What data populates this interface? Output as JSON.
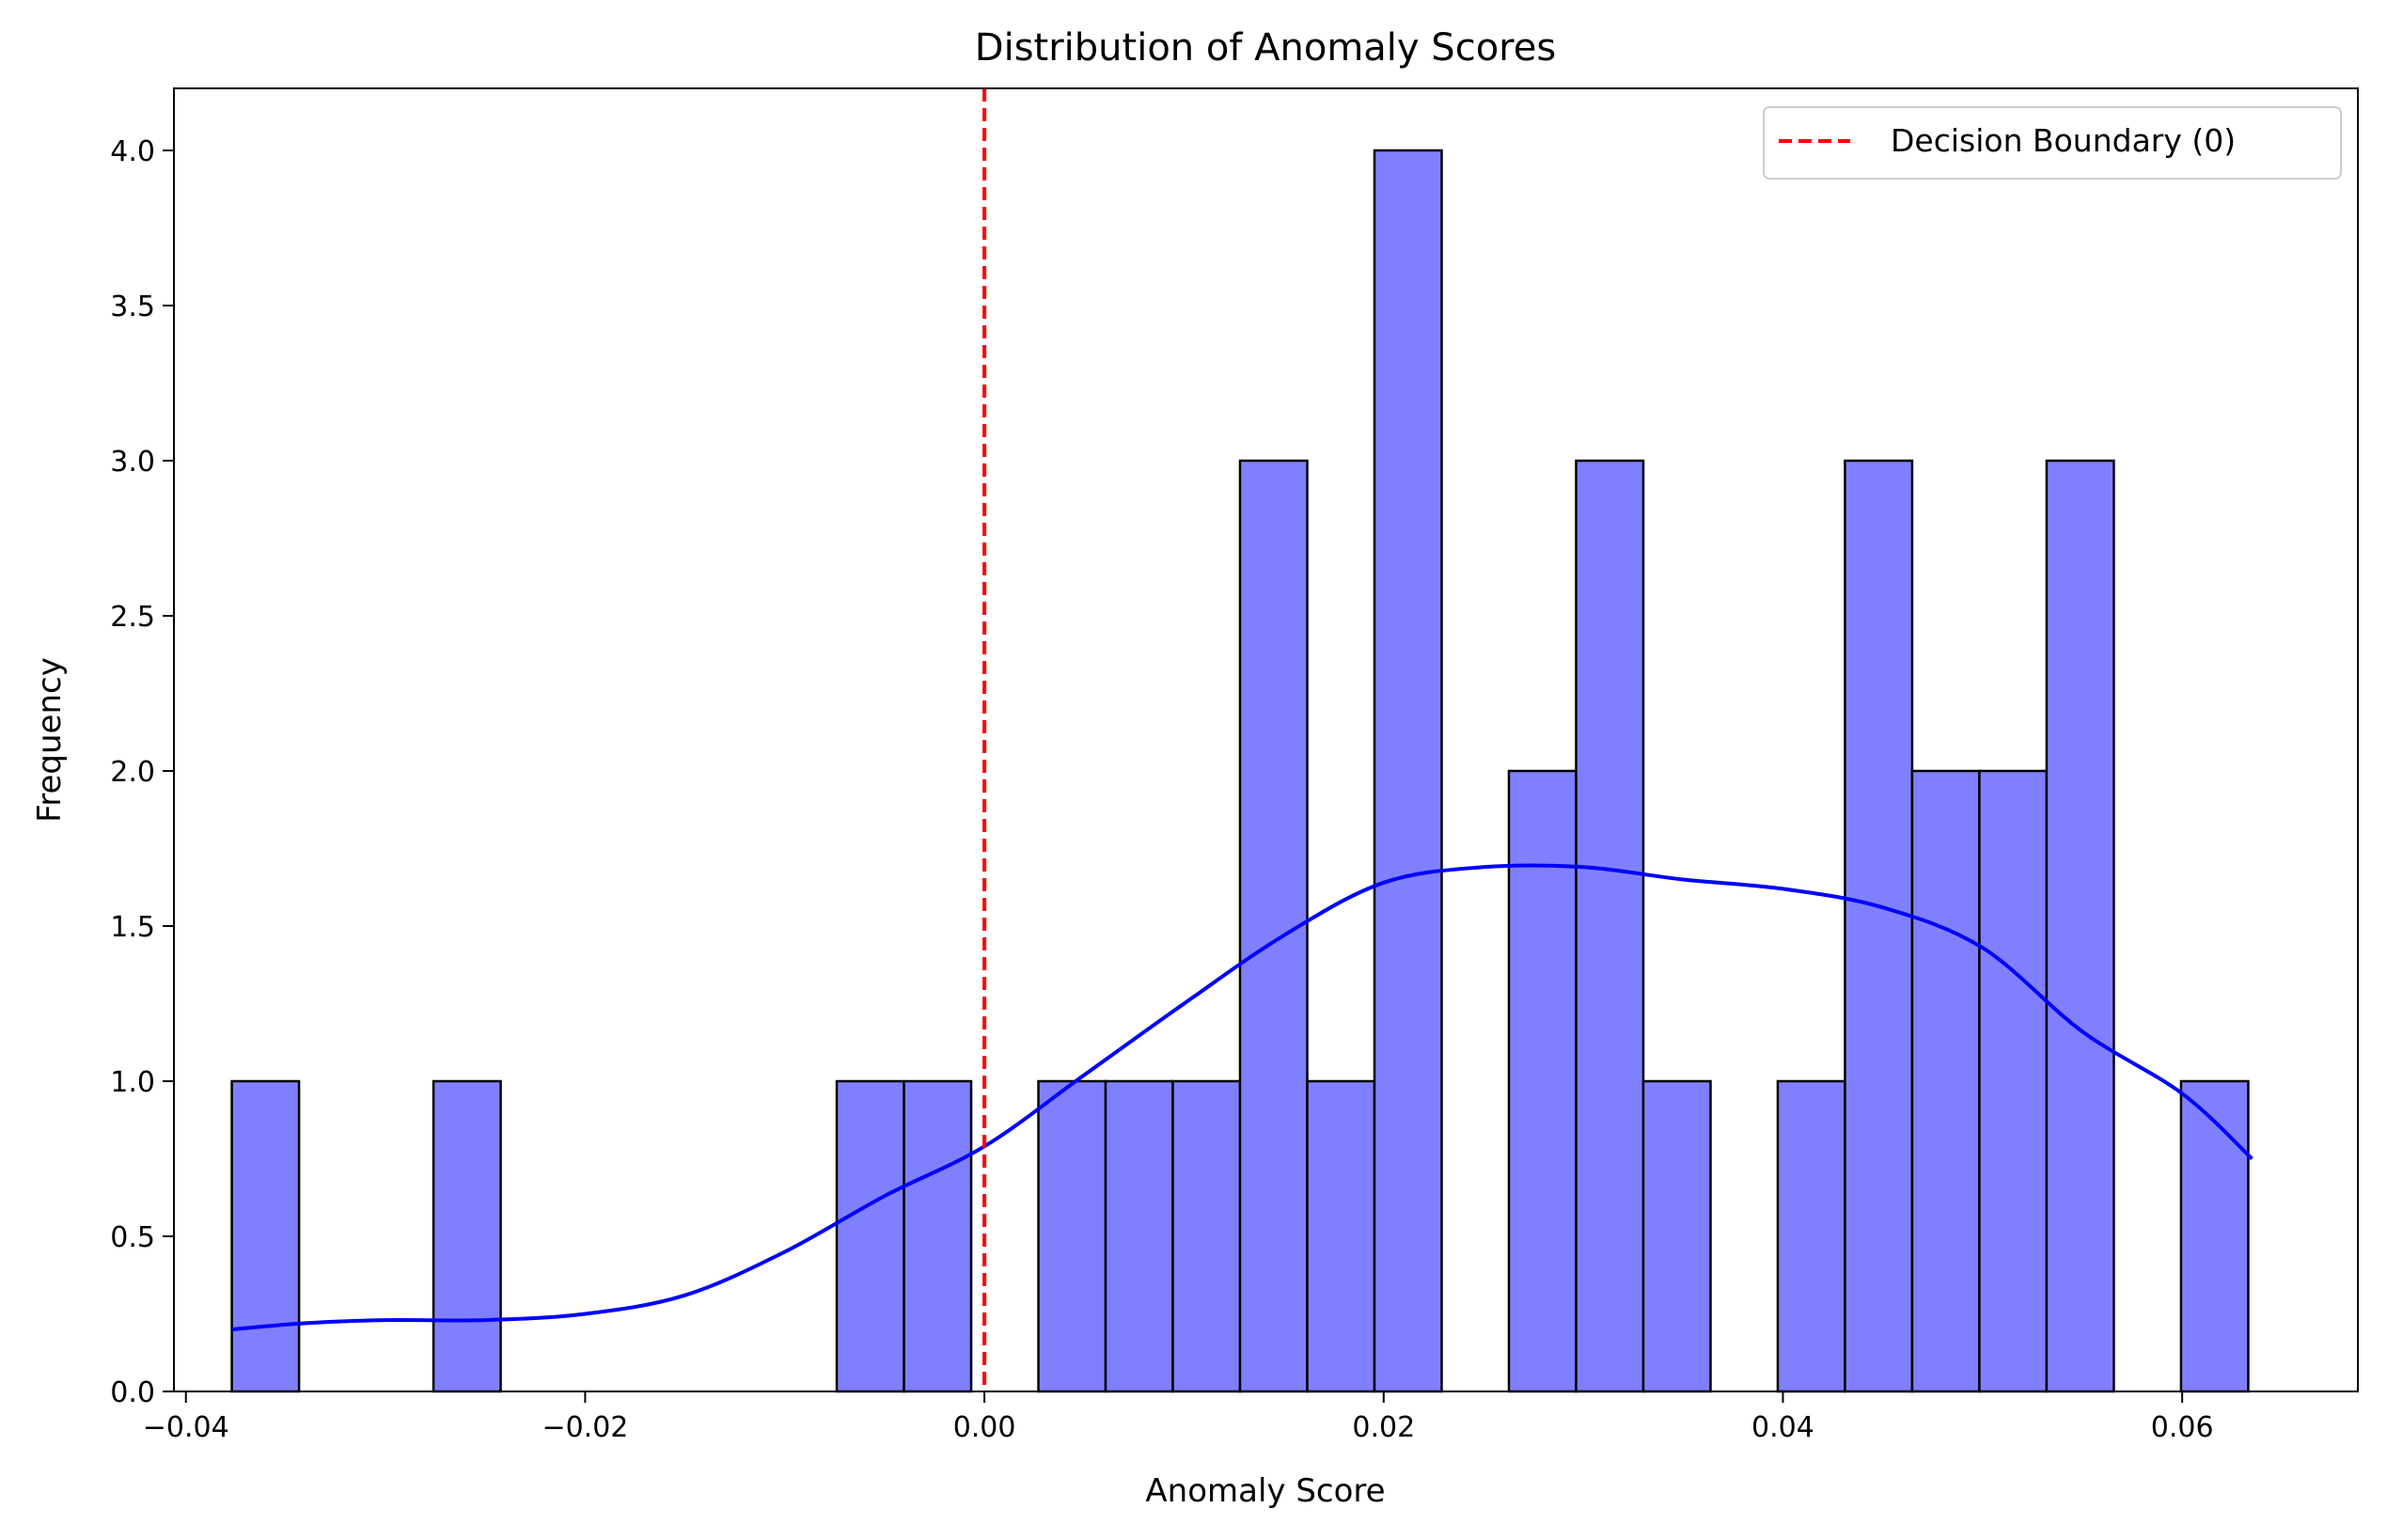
{
  "chart_data": {
    "type": "bar",
    "title": "Distribution of Anomaly Scores",
    "xlabel": "Anomaly Score",
    "ylabel": "Frequency",
    "xlim": [
      -0.0406,
      0.0688
    ],
    "ylim": [
      0,
      4.2
    ],
    "xticks": [
      -0.04,
      -0.02,
      0.0,
      0.02,
      0.04,
      0.06
    ],
    "xtick_labels": [
      "−0.04",
      "−0.02",
      "0.00",
      "0.02",
      "0.04",
      "0.06"
    ],
    "yticks": [
      0,
      0.5,
      1,
      1.5,
      2,
      2.5,
      3,
      3.5,
      4
    ],
    "ytick_labels": [
      "0.0",
      "0.5",
      "1.0",
      "1.5",
      "2.0",
      "2.5",
      "3.0",
      "3.5",
      "4.0"
    ],
    "histogram": {
      "bin_start": -0.0377,
      "bin_width": 0.003367,
      "counts": [
        1,
        0,
        0,
        1,
        0,
        0,
        0,
        0,
        0,
        1,
        1,
        0,
        1,
        1,
        1,
        3,
        1,
        4,
        0,
        2,
        3,
        1,
        0,
        1,
        3,
        2,
        2,
        3,
        0,
        1
      ],
      "fill_color": "#8080ff",
      "edge_color": "#000000"
    },
    "kde": {
      "color": "#0000ff",
      "x": [
        -0.0377,
        -0.034,
        -0.03,
        -0.025,
        -0.02,
        -0.015,
        -0.01,
        -0.005,
        0.0,
        0.005,
        0.01,
        0.015,
        0.02,
        0.025,
        0.03,
        0.035,
        0.04,
        0.045,
        0.05,
        0.055,
        0.06,
        0.0635
      ],
      "y": [
        0.2,
        0.22,
        0.23,
        0.23,
        0.25,
        0.31,
        0.45,
        0.63,
        0.79,
        1.02,
        1.25,
        1.47,
        1.64,
        1.69,
        1.69,
        1.65,
        1.62,
        1.56,
        1.43,
        1.16,
        0.96,
        0.75
      ]
    },
    "reference_line": {
      "x": 0.0,
      "color": "#ff0000",
      "style": "dashed",
      "label": "Decision Boundary (0)"
    },
    "legend": {
      "position": "top-right",
      "entries": [
        "Decision Boundary (0)"
      ]
    },
    "grid": false
  }
}
